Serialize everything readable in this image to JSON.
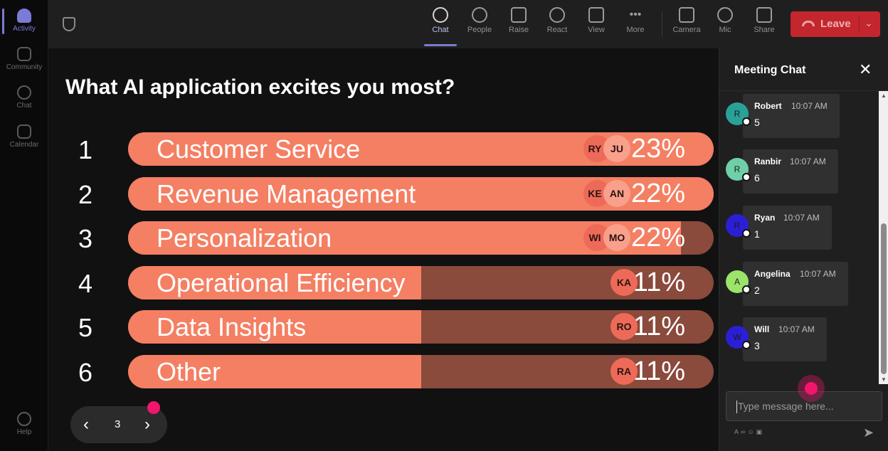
{
  "rail": {
    "items": [
      {
        "label": "Activity",
        "icon": "bell-icon"
      },
      {
        "label": "Community",
        "icon": "community-icon"
      },
      {
        "label": "Chat",
        "icon": "chat-icon"
      },
      {
        "label": "Calendar",
        "icon": "calendar-icon"
      }
    ],
    "help": {
      "label": "Help",
      "icon": "help-icon"
    }
  },
  "toolbar": {
    "buttons": [
      {
        "label": "Chat",
        "icon": "chat-icon"
      },
      {
        "label": "People",
        "icon": "people-icon"
      },
      {
        "label": "Raise",
        "icon": "raise-hand-icon"
      },
      {
        "label": "React",
        "icon": "smiley-icon"
      },
      {
        "label": "View",
        "icon": "grid-icon"
      },
      {
        "label": "More",
        "icon": "more-dots-icon"
      },
      {
        "label": "Camera",
        "icon": "camera-off-icon"
      },
      {
        "label": "Mic",
        "icon": "mic-icon"
      },
      {
        "label": "Share",
        "icon": "share-icon"
      }
    ],
    "leave_label": "Leave",
    "leave_color": "#c4262e"
  },
  "poll": {
    "question": "What AI application excites you most?",
    "options": [
      {
        "rank": "1",
        "label": "Customer Service",
        "percent": "23%",
        "fill_fraction": 1.0,
        "avatars": [
          "RY",
          "JU"
        ]
      },
      {
        "rank": "2",
        "label": "Revenue Management",
        "percent": "22%",
        "fill_fraction": 1.0,
        "avatars": [
          "KE",
          "AN"
        ]
      },
      {
        "rank": "3",
        "label": "Personalization",
        "percent": "22%",
        "fill_fraction": 0.944,
        "avatars": [
          "WI",
          "MO"
        ]
      },
      {
        "rank": "4",
        "label": "Operational Efficiency",
        "percent": "11%",
        "fill_fraction": 0.5,
        "avatars": [
          "KA"
        ]
      },
      {
        "rank": "5",
        "label": "Data Insights",
        "percent": "11%",
        "fill_fraction": 0.5,
        "avatars": [
          "RO"
        ]
      },
      {
        "rank": "6",
        "label": "Other",
        "percent": "11%",
        "fill_fraction": 0.5,
        "avatars": [
          "RA"
        ]
      }
    ],
    "page": "3",
    "bar_color": "#f47f63",
    "bar_track_color": "#8a4a3c"
  },
  "chat": {
    "title": "Meeting Chat",
    "messages": [
      {
        "initial": "R",
        "name": "Robert",
        "time": "10:07 AM",
        "text": "5",
        "avatar_color": "#2aa198"
      },
      {
        "initial": "R",
        "name": "Ranbir",
        "time": "10:07 AM",
        "text": "6",
        "avatar_color": "#6fcfa8"
      },
      {
        "initial": "R",
        "name": "Ryan",
        "time": "10:07 AM",
        "text": "1",
        "avatar_color": "#2b1fd6"
      },
      {
        "initial": "A",
        "name": "Angelina",
        "time": "10:07 AM",
        "text": "2",
        "avatar_color": "#9be36a"
      },
      {
        "initial": "W",
        "name": "Will",
        "time": "10:07 AM",
        "text": "3",
        "avatar_color": "#2b1fd6"
      }
    ],
    "input_placeholder": "Type message here..."
  }
}
